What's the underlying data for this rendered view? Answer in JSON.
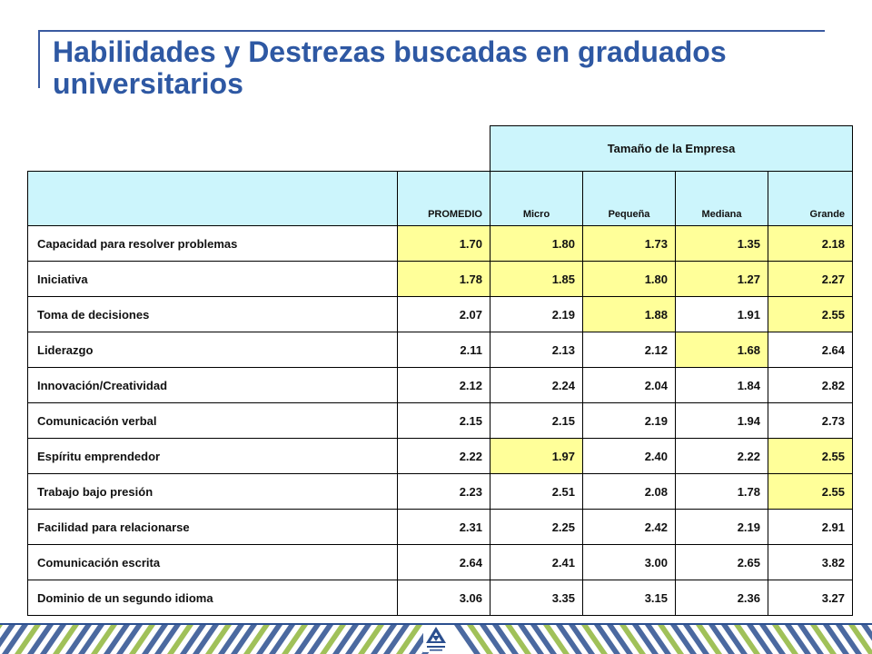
{
  "title": "Habilidades y Destrezas buscadas en graduados universitarios",
  "table": {
    "group_header": "Tamaño de la Empresa",
    "columns": [
      "PROMEDIO",
      "Micro",
      "Pequeña",
      "Mediana",
      "Grande"
    ],
    "rows": [
      {
        "label": "Capacidad para resolver problemas",
        "values": [
          "1.70",
          "1.80",
          "1.73",
          "1.35",
          "2.18"
        ],
        "highlight": [
          true,
          true,
          true,
          true,
          true
        ]
      },
      {
        "label": "Iniciativa",
        "values": [
          "1.78",
          "1.85",
          "1.80",
          "1.27",
          "2.27"
        ],
        "highlight": [
          true,
          true,
          true,
          true,
          true
        ]
      },
      {
        "label": "Toma de decisiones",
        "values": [
          "2.07",
          "2.19",
          "1.88",
          "1.91",
          "2.55"
        ],
        "highlight": [
          false,
          false,
          true,
          false,
          true
        ]
      },
      {
        "label": "Liderazgo",
        "values": [
          "2.11",
          "2.13",
          "2.12",
          "1.68",
          "2.64"
        ],
        "highlight": [
          false,
          false,
          false,
          true,
          false
        ]
      },
      {
        "label": "Innovación/Creatividad",
        "values": [
          "2.12",
          "2.24",
          "2.04",
          "1.84",
          "2.82"
        ],
        "highlight": [
          false,
          false,
          false,
          false,
          false
        ]
      },
      {
        "label": "Comunicación verbal",
        "values": [
          "2.15",
          "2.15",
          "2.19",
          "1.94",
          "2.73"
        ],
        "highlight": [
          false,
          false,
          false,
          false,
          false
        ]
      },
      {
        "label": "Espíritu emprendedor",
        "values": [
          "2.22",
          "1.97",
          "2.40",
          "2.22",
          "2.55"
        ],
        "highlight": [
          false,
          true,
          false,
          false,
          true
        ]
      },
      {
        "label": "Trabajo bajo presión",
        "values": [
          "2.23",
          "2.51",
          "2.08",
          "1.78",
          "2.55"
        ],
        "highlight": [
          false,
          false,
          false,
          false,
          true
        ]
      },
      {
        "label": "Facilidad para relacionarse",
        "values": [
          "2.31",
          "2.25",
          "2.42",
          "2.19",
          "2.91"
        ],
        "highlight": [
          false,
          false,
          false,
          false,
          false
        ]
      },
      {
        "label": "Comunicación escrita",
        "values": [
          "2.64",
          "2.41",
          "3.00",
          "2.65",
          "3.82"
        ],
        "highlight": [
          false,
          false,
          false,
          false,
          false
        ]
      },
      {
        "label": "Dominio de un segundo idioma",
        "values": [
          "3.06",
          "3.35",
          "3.15",
          "2.36",
          "3.27"
        ],
        "highlight": [
          false,
          false,
          false,
          false,
          false
        ]
      }
    ]
  },
  "colors": {
    "title": "#2e58a3",
    "header_fill": "#ccf5fc",
    "highlight_fill": "#ffff99",
    "footer_stripe_blue": "#2b4f8f",
    "footer_stripe_green": "#8fb63c"
  },
  "footer": {
    "logo_icon": "organization-logo-icon"
  }
}
